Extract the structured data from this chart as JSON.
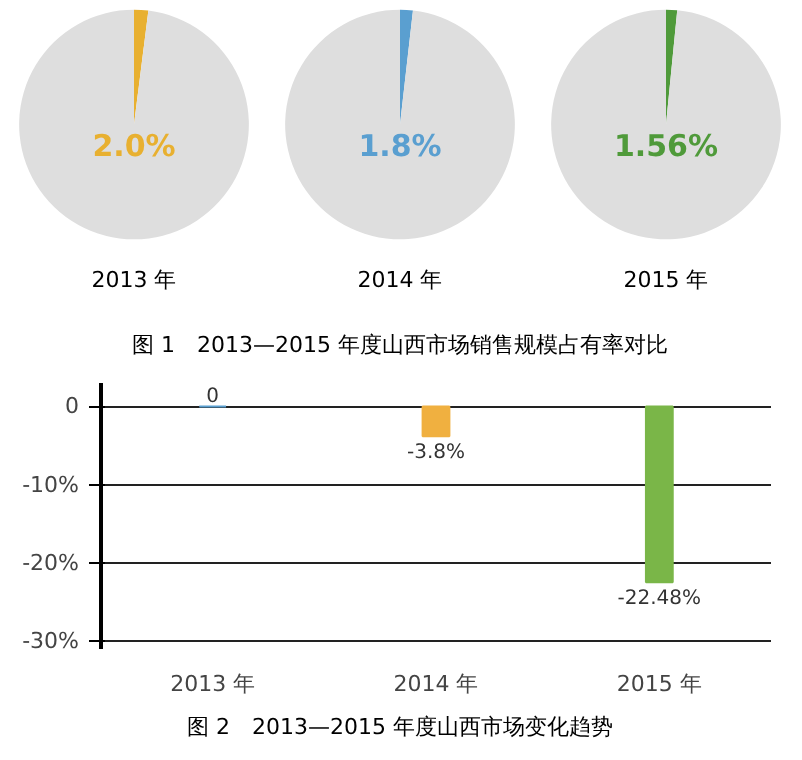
{
  "chart_data": [
    {
      "type": "pie",
      "title": "2013 年",
      "categories": [
        null,
        null
      ],
      "values": [
        2.0,
        98.0
      ],
      "colors": [
        "#e8b030",
        "#dedede"
      ],
      "annotations": [
        "2.0%"
      ]
    },
    {
      "type": "pie",
      "title": "2014 年",
      "categories": [
        null,
        null
      ],
      "values": [
        1.8,
        98.2
      ],
      "colors": [
        "#5a9fd0",
        "#dedede"
      ],
      "annotations": [
        "1.8%"
      ]
    },
    {
      "type": "pie",
      "title": "2015 年",
      "categories": [
        null,
        null
      ],
      "values": [
        1.56,
        98.44
      ],
      "colors": [
        "#4f9a3a",
        "#dedede"
      ],
      "annotations": [
        "1.56%"
      ]
    },
    {
      "type": "other",
      "title": "图 1　2013—2015 年度山西市场销售规模占有率对比"
    },
    {
      "type": "bar",
      "title": "图 2　2013—2015 年度山西市场变化趋势",
      "categories": [
        "2013 年",
        "2014 年",
        "2015 年"
      ],
      "values": [
        0,
        -3.8,
        -22.48
      ],
      "colors": [
        "#5a9fd0",
        "#f0b040",
        "#7ab648"
      ],
      "value_labels": [
        "0",
        "-3.8%",
        "-22.48%"
      ],
      "ylim": [
        -31,
        3
      ],
      "yticks": [
        0,
        {
          "value": -10,
          "label": "-10%"
        },
        {
          "value": -20,
          "label": "-20%"
        },
        {
          "value": -30,
          "label": "-30%"
        }
      ],
      "grid": "y"
    }
  ]
}
